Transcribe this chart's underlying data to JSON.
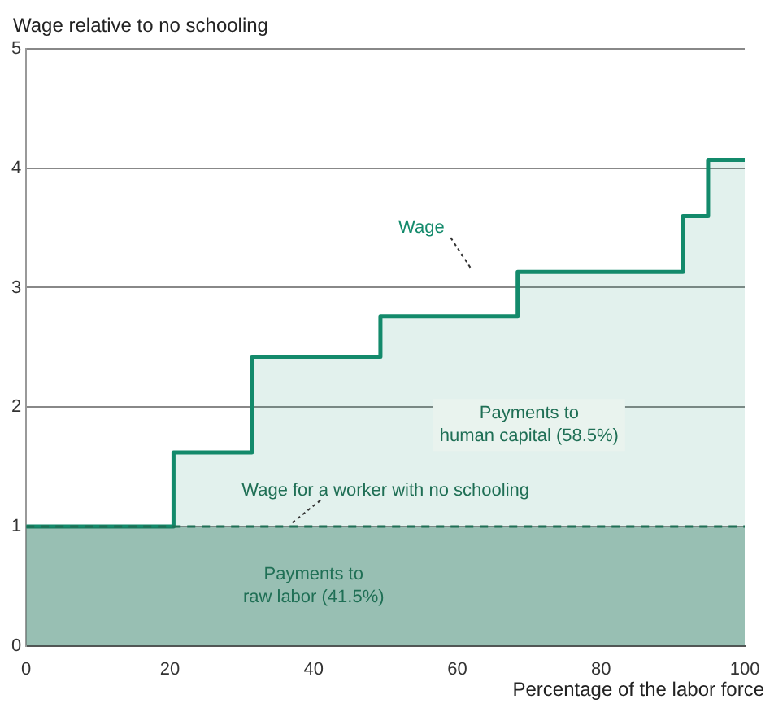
{
  "chart_data": {
    "type": "area",
    "ylabel": "Wage relative to no schooling",
    "xlabel": "Percentage of the labor force",
    "xlim": [
      0,
      100
    ],
    "xticks": [
      0,
      20,
      40,
      60,
      80,
      100
    ],
    "ylim": [
      0,
      5
    ],
    "yticks": [
      0,
      1,
      2,
      3,
      4,
      5
    ],
    "grid": "y",
    "legend": false,
    "series": [
      {
        "name": "Wage",
        "color": "#138a6b",
        "x": [
          0,
          20.5,
          20.5,
          31.4,
          31.4,
          49.3,
          49.3,
          68.4,
          68.4,
          91.4,
          91.4,
          94.9,
          94.9,
          100
        ],
        "values": [
          1,
          1,
          1.62,
          1.62,
          2.42,
          2.42,
          2.76,
          2.76,
          3.13,
          3.13,
          3.6,
          3.6,
          4.07,
          4.07
        ]
      },
      {
        "name": "Wage for a worker with no schooling",
        "line_style": "dashed",
        "color": "#1f6f55",
        "x": [
          0,
          100
        ],
        "values": [
          1,
          1
        ]
      }
    ],
    "annotations": [
      "Payments to human capital (58.5%)",
      "Payments to raw labor (41.5%)"
    ]
  }
}
